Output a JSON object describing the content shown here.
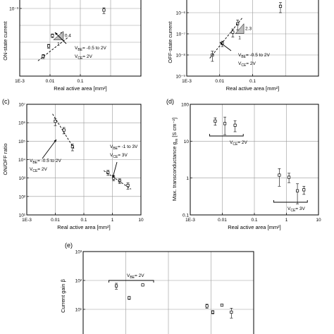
{
  "chart_data": [
    {
      "panel_label": "",
      "type": "scatter",
      "title": "",
      "xlabel": "Real active area [mm²]",
      "ylabel": "ON-state current",
      "xscale": "log",
      "yscale": "log",
      "xlim": [
        0.001,
        10
      ],
      "ylim": [
        1e-07,
        0.01
      ],
      "x_ticks": [
        "1E-3",
        "0.01",
        "0.1"
      ],
      "y_ticks": [
        "10⁻³"
      ],
      "series": [
        {
          "x": [
            0.006,
            0.009,
            0.012,
            0.025,
            0.6
          ],
          "y": [
            1.5e-06,
            6e-06,
            2.5e-05,
            3e-05,
            0.0008
          ],
          "err": [
            4e-07,
            1.5e-06,
            6e-06,
            8e-06,
            0.0003
          ]
        }
      ],
      "fit": {
        "x": [
          0.004,
          0.04
        ],
        "y": [
          8e-07,
          2e-05
        ]
      },
      "annotations": [
        {
          "text": "V",
          "sub": "BE",
          "rest": "= -0.5 to 2V"
        },
        {
          "text": "V",
          "sub": "CE",
          "rest": "= 2V"
        }
      ],
      "slope_box": {
        "rise": "0.4",
        "run": "1"
      }
    },
    {
      "panel_label": "",
      "type": "scatter",
      "title": "",
      "xlabel": "Real active area [mm²]",
      "ylabel": "OFF-state current",
      "xscale": "log",
      "yscale": "log",
      "xlim": [
        0.001,
        10
      ],
      "ylim": [
        1e-09,
        1e-05
      ],
      "x_ticks": [
        "1E-3",
        "0.01",
        "0.1"
      ],
      "y_ticks": [
        "10⁻⁶",
        "10⁻⁷",
        "10⁻⁸",
        "10⁻⁹"
      ],
      "series": [
        {
          "x": [
            0.006,
            0.012,
            0.025,
            0.035,
            0.7
          ],
          "y": [
            1e-08,
            3.5e-08,
            1.2e-07,
            3e-07,
            2e-06
          ],
          "err": [
            5e-09,
            1e-08,
            5e-08,
            1.5e-07,
            1e-06
          ]
        }
      ],
      "fit": {
        "x": [
          0.005,
          0.05
        ],
        "y": [
          7e-09,
          6e-07
        ]
      },
      "annotations": [
        {
          "text": "V",
          "sub": "BE",
          "rest": "= -0.5 to 2V"
        },
        {
          "text": "V",
          "sub": "CE",
          "rest": "= 2V"
        }
      ],
      "slope_box": {
        "rise": "2.3",
        "run": "1"
      }
    },
    {
      "panel_label": "(c)",
      "type": "scatter",
      "title": "",
      "xlabel": "Real active area [mm²]",
      "ylabel": "ON/OFF ratio",
      "xscale": "log",
      "yscale": "log",
      "xlim": [
        0.001,
        10
      ],
      "ylim": [
        10,
        10000000
      ],
      "x_ticks": [
        "1E-3",
        "0.01",
        "0.1",
        "1",
        "10"
      ],
      "y_ticks": [
        "10⁷",
        "10⁶",
        "10⁵",
        "10⁴",
        "10³",
        "10²",
        "10¹"
      ],
      "series": [
        {
          "name": "",
          "x": [
            0.01,
            0.02,
            0.04
          ],
          "y": [
            1200000,
            400000,
            50000
          ],
          "err": [
            500000,
            150000,
            20000
          ]
        },
        {
          "name": "",
          "x": [
            0.7,
            1.1,
            1.8,
            3.5
          ],
          "y": [
            2000,
            1000,
            700,
            400
          ],
          "err": [
            600,
            300,
            200,
            150
          ]
        }
      ],
      "fits": [
        {
          "x": [
            0.008,
            0.045
          ],
          "y": [
            3000000,
            40000
          ]
        },
        {
          "x": [
            0.5,
            4.5
          ],
          "y": [
            2500,
            250
          ]
        }
      ],
      "annotations": [
        {
          "text": "V",
          "sub": "BE",
          "rest": "= -0.5 to 2V"
        },
        {
          "text": "V",
          "sub": "CE",
          "rest": "= 2V"
        },
        {
          "text": "V",
          "sub": "BE",
          "rest": "= -1 to 3V"
        },
        {
          "text": "V",
          "sub": "CE",
          "rest": "= 3V"
        }
      ]
    },
    {
      "panel_label": "(d)",
      "type": "scatter",
      "title": "",
      "xlabel": "Real active area [mm²]",
      "ylabel": "Max. transconductance g",
      "ylabel_sub": "m",
      "ylabel_unit": "[S cm⁻²]",
      "xscale": "log",
      "yscale": "log",
      "xlim": [
        0.001,
        10
      ],
      "ylim": [
        0.1,
        100
      ],
      "x_ticks": [
        "1E-3",
        "0.01",
        "0.1",
        "1",
        "10"
      ],
      "y_ticks": [
        "100",
        "10",
        "1",
        "0.1"
      ],
      "series": [
        {
          "x": [
            0.006,
            0.012,
            0.025
          ],
          "y": [
            35,
            30,
            27
          ],
          "err": [
            8,
            15,
            9
          ]
        },
        {
          "x": [
            0.6,
            1.2,
            2.2,
            3.5
          ],
          "y": [
            1.2,
            1.05,
            0.45,
            0.48
          ],
          "err": [
            0.6,
            0.3,
            0.25,
            0.12
          ]
        }
      ],
      "groups": [
        {
          "label_main": "V",
          "label_sub": "CE",
          "label_rest": "= 2V"
        },
        {
          "label_main": "V",
          "label_sub": "CE",
          "label_rest": "= 3V"
        }
      ]
    },
    {
      "panel_label": "(e)",
      "type": "scatter",
      "title": "",
      "xlabel": "",
      "ylabel": "Current gain β",
      "xscale": "log",
      "yscale": "log",
      "xlim": [
        0.001,
        10
      ],
      "ylim": [
        1,
        1000
      ],
      "y_ticks": [
        "10³",
        "10²",
        "10¹"
      ],
      "series": [
        {
          "x": [
            0.006,
            0.012,
            0.025
          ],
          "y": [
            65,
            25,
            70
          ],
          "err": [
            15,
            3,
            4
          ]
        },
        {
          "x": [
            0.8,
            1.1,
            1.8,
            3.0
          ],
          "y": [
            13,
            8,
            14,
            8
          ],
          "err": [
            2,
            1,
            1,
            3
          ]
        }
      ],
      "groups": [
        {
          "label_main": "V",
          "label_sub": "BE",
          "label_rest": "= 2V"
        }
      ]
    }
  ]
}
